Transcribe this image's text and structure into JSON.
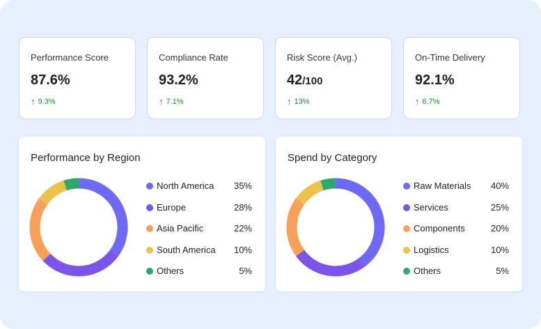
{
  "colors": {
    "purple_light": "#6e6af7",
    "purple": "#7a55e8",
    "orange": "#f6a05a",
    "yellow": "#ecc24a",
    "green": "#2fa86b",
    "positive": "#1e8a3a"
  },
  "kpis": [
    {
      "label": "Performance Score",
      "value": "87.6%",
      "unit": "",
      "delta": "9.3%",
      "trend_icon": "arrow-up-icon"
    },
    {
      "label": "Compliance Rate",
      "value": "93.2%",
      "unit": "",
      "delta": "7.1%",
      "trend_icon": "arrow-up-icon"
    },
    {
      "label": "Risk Score (Avg.)",
      "value": "42",
      "unit": "/100",
      "delta": "13%",
      "trend_icon": "arrow-up-icon"
    },
    {
      "label": "On-Time Delivery",
      "value": "92.1%",
      "unit": "",
      "delta": "6.7%",
      "trend_icon": "arrow-up-icon"
    }
  ],
  "chart_data": [
    {
      "type": "pie",
      "title": "Performance by Region",
      "categories": [
        "North America",
        "Europe",
        "Asia Pacific",
        "South America",
        "Others"
      ],
      "values": [
        35,
        28,
        22,
        10,
        5
      ],
      "value_labels": [
        "35%",
        "28%",
        "22%",
        "10%",
        "5%"
      ],
      "colors": [
        "#6e6af7",
        "#7a55e8",
        "#f6a05a",
        "#ecc24a",
        "#2fa86b"
      ],
      "legend_position": "right"
    },
    {
      "type": "pie",
      "title": "Spend by Category",
      "categories": [
        "Raw Materials",
        "Services",
        "Components",
        "Logistics",
        "Others"
      ],
      "values": [
        40,
        25,
        20,
        10,
        5
      ],
      "value_labels": [
        "40%",
        "25%",
        "20%",
        "10%",
        "5%"
      ],
      "colors": [
        "#6e6af7",
        "#7a55e8",
        "#f6a05a",
        "#ecc24a",
        "#2fa86b"
      ],
      "legend_position": "right"
    }
  ]
}
